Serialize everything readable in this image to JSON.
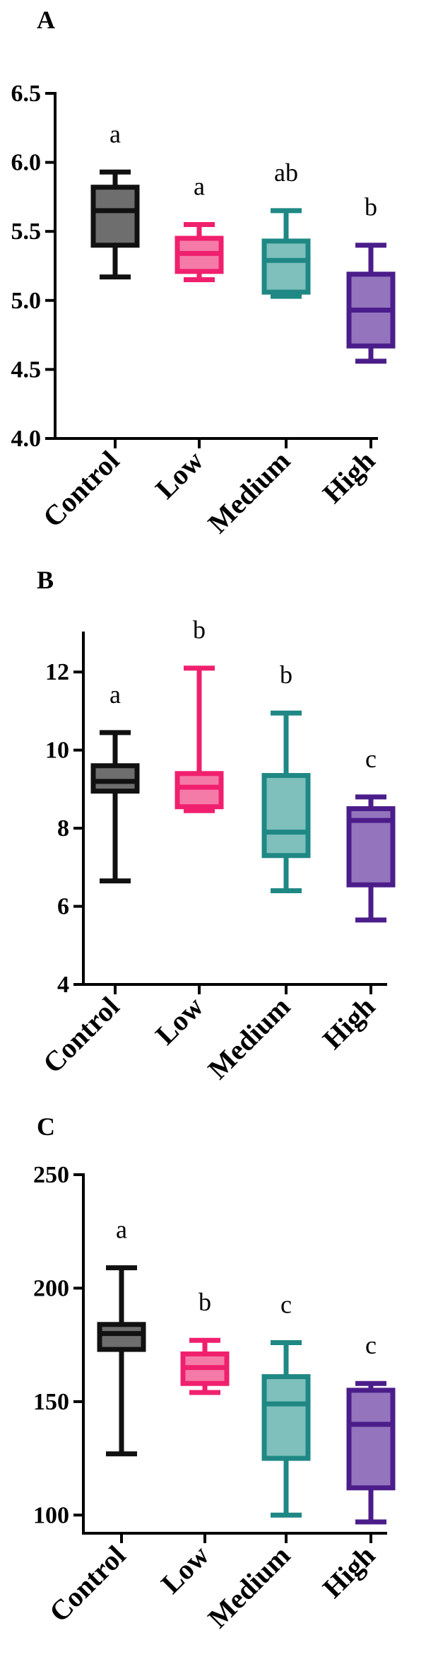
{
  "chart_data": [
    {
      "type": "box",
      "panel_label": "A",
      "categories": [
        "Control",
        "Low",
        "Medium",
        "High"
      ],
      "ylim": [
        4.0,
        6.5
      ],
      "yticks": [
        "4.0",
        "4.5",
        "5.0",
        "5.5",
        "6.0",
        "6.5"
      ],
      "boxes": [
        {
          "min": 5.17,
          "q1": 5.4,
          "median": 5.65,
          "q3": 5.82,
          "max": 5.93
        },
        {
          "min": 5.15,
          "q1": 5.21,
          "median": 5.34,
          "q3": 5.45,
          "max": 5.55
        },
        {
          "min": 5.03,
          "q1": 5.06,
          "median": 5.29,
          "q3": 5.43,
          "max": 5.65
        },
        {
          "min": 4.56,
          "q1": 4.67,
          "median": 4.93,
          "q3": 5.19,
          "max": 5.4
        }
      ],
      "significance": [
        "a",
        "a",
        "ab",
        "b"
      ]
    },
    {
      "type": "box",
      "panel_label": "B",
      "categories": [
        "Control",
        "Low",
        "Medium",
        "High"
      ],
      "ylim": [
        4,
        13
      ],
      "yticks": [
        "4",
        "6",
        "8",
        "10",
        "12"
      ],
      "boxes": [
        {
          "min": 6.65,
          "q1": 8.95,
          "median": 9.2,
          "q3": 9.6,
          "max": 10.45
        },
        {
          "min": 8.45,
          "q1": 8.55,
          "median": 9.05,
          "q3": 9.4,
          "max": 12.1
        },
        {
          "min": 6.4,
          "q1": 7.3,
          "median": 7.9,
          "q3": 9.35,
          "max": 10.95
        },
        {
          "min": 5.65,
          "q1": 6.55,
          "median": 8.2,
          "q3": 8.5,
          "max": 8.8
        }
      ],
      "significance": [
        "a",
        "b",
        "b",
        "c"
      ]
    },
    {
      "type": "box",
      "panel_label": "C",
      "categories": [
        "Control",
        "Low",
        "Medium",
        "High"
      ],
      "ylim": [
        92,
        250
      ],
      "yticks": [
        "100",
        "150",
        "200",
        "250"
      ],
      "boxes": [
        {
          "min": 127,
          "q1": 173,
          "median": 180,
          "q3": 184,
          "max": 209
        },
        {
          "min": 154,
          "q1": 158,
          "median": 165,
          "q3": 171,
          "max": 177
        },
        {
          "min": 100,
          "q1": 125,
          "median": 149,
          "q3": 161,
          "max": 176
        },
        {
          "min": 97,
          "q1": 112,
          "median": 140,
          "q3": 155,
          "max": 158
        }
      ],
      "significance": [
        "a",
        "b",
        "c",
        "c"
      ]
    }
  ],
  "colors": {
    "series": [
      {
        "fill": "#6e6e6e",
        "stroke": "#111111"
      },
      {
        "fill": "#f47ba8",
        "stroke": "#f0206e"
      },
      {
        "fill": "#7fc0bc",
        "stroke": "#1f8884"
      },
      {
        "fill": "#9474bd",
        "stroke": "#4b1d8a"
      }
    ],
    "axis": "#000000"
  }
}
